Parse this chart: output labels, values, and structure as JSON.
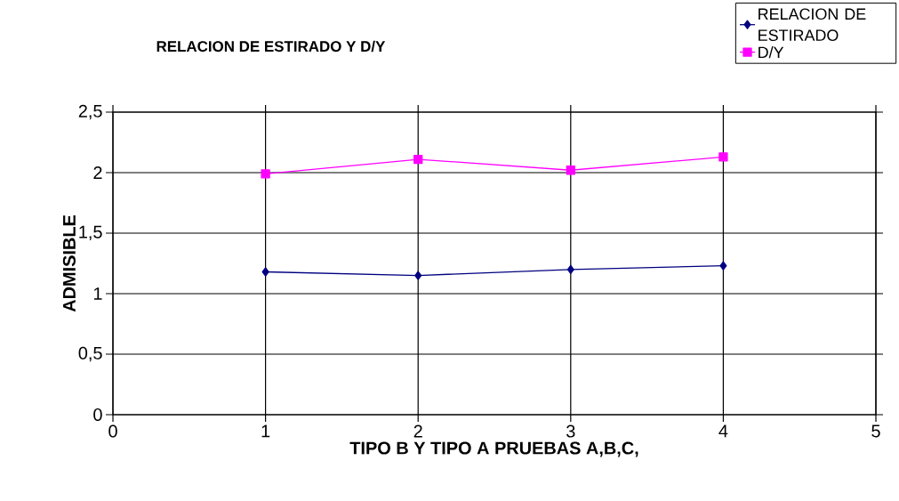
{
  "chart_data": {
    "type": "line",
    "title": "RELACION DE ESTIRADO Y D/Y",
    "xlabel": "TIPO B  Y  TIPO A PRUEBAS A,B,C,",
    "ylabel": "ADMISIBLE",
    "x": [
      1,
      2,
      3,
      4
    ],
    "series": [
      {
        "name": "RELACION DE ESTIRADO",
        "color": "#000080",
        "marker": "diamond",
        "values": [
          1.18,
          1.15,
          1.2,
          1.23
        ]
      },
      {
        "name": "D/Y",
        "color": "#ff00ff",
        "marker": "square",
        "values": [
          1.99,
          2.11,
          2.02,
          2.13
        ]
      }
    ],
    "xlim": [
      0,
      5
    ],
    "ylim": [
      0,
      2.5
    ],
    "xticks": [
      0,
      1,
      2,
      3,
      4,
      5
    ],
    "yticks": [
      0,
      {
        "value": 0.5,
        "label": "0,5"
      },
      1,
      {
        "value": 1.5,
        "label": "1,5"
      },
      2,
      {
        "value": 2.5,
        "label": "2,5"
      }
    ],
    "grid": true,
    "legend": "top right",
    "line_style": "solid"
  }
}
